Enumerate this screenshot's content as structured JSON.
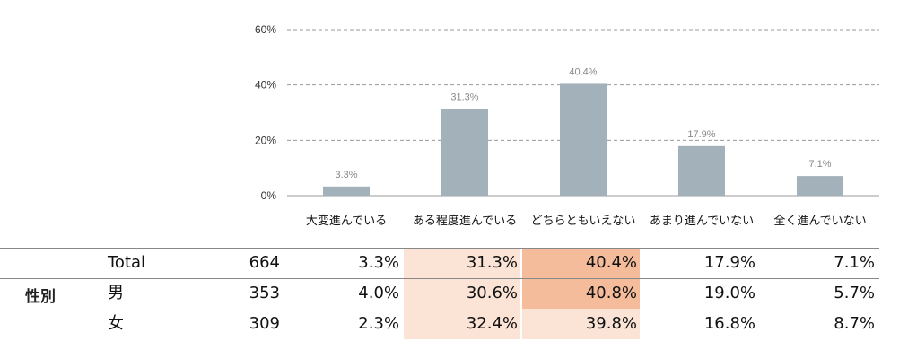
{
  "chart_data": {
    "type": "bar",
    "categories": [
      "大変進んでいる",
      "ある程度進んでいる",
      "どちらともいえない",
      "あまり進んでいない",
      "全く進んでいない"
    ],
    "values": [
      3.3,
      31.3,
      40.4,
      17.9,
      7.1
    ],
    "value_labels": [
      "3.3%",
      "31.3%",
      "40.4%",
      "17.9%",
      "7.1%"
    ],
    "yticks": [
      "0%",
      "20%",
      "40%",
      "60%"
    ],
    "ylim": [
      0,
      60
    ],
    "grid": true,
    "bar_color": "#a3b1ba"
  },
  "table": {
    "group_label": "性別",
    "rows": [
      {
        "label": "Total",
        "n": "664",
        "cells": [
          "3.3%",
          "31.3%",
          "40.4%",
          "17.9%",
          "7.1%"
        ],
        "shade": [
          "",
          "light",
          "dark",
          "",
          ""
        ]
      },
      {
        "label": "男",
        "n": "353",
        "cells": [
          "4.0%",
          "30.6%",
          "40.8%",
          "19.0%",
          "5.7%"
        ],
        "shade": [
          "",
          "light",
          "dark",
          "",
          ""
        ]
      },
      {
        "label": "女",
        "n": "309",
        "cells": [
          "2.3%",
          "32.4%",
          "39.8%",
          "16.8%",
          "8.7%"
        ],
        "shade": [
          "",
          "light",
          "light",
          "",
          ""
        ]
      }
    ],
    "highlight_colors": {
      "light": "#fbe3d6",
      "dark": "#f5bc9c"
    }
  }
}
